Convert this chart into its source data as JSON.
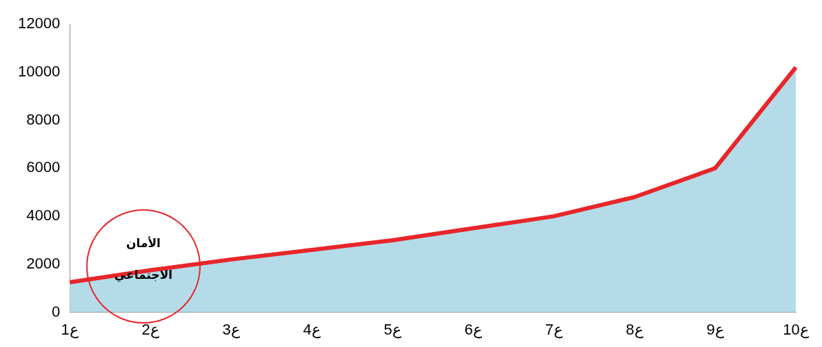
{
  "chart_data": {
    "type": "area",
    "categories": [
      "ع1",
      "ع2",
      "ع3",
      "ع4",
      "ع5",
      "ع6",
      "ع7",
      "ع8",
      "ع9",
      "ع10"
    ],
    "series": [
      {
        "color": "#b4dce8",
        "values": [
          1250,
          1750,
          2200,
          2600,
          3000,
          3500,
          4000,
          4800,
          6000,
          10200
        ]
      },
      {
        "type": "line",
        "color": "#e8262a",
        "values": [
          1250,
          1750,
          2200,
          2600,
          3000,
          3500,
          4000,
          4800,
          6000,
          10200
        ]
      }
    ],
    "ylim": [
      0,
      12000
    ],
    "yticks": [
      0,
      2000,
      4000,
      6000,
      8000,
      10000,
      12000
    ],
    "grid": false,
    "legend": false,
    "marker": "none",
    "annotations": [
      "الأمان الاجتماعي"
    ]
  }
}
